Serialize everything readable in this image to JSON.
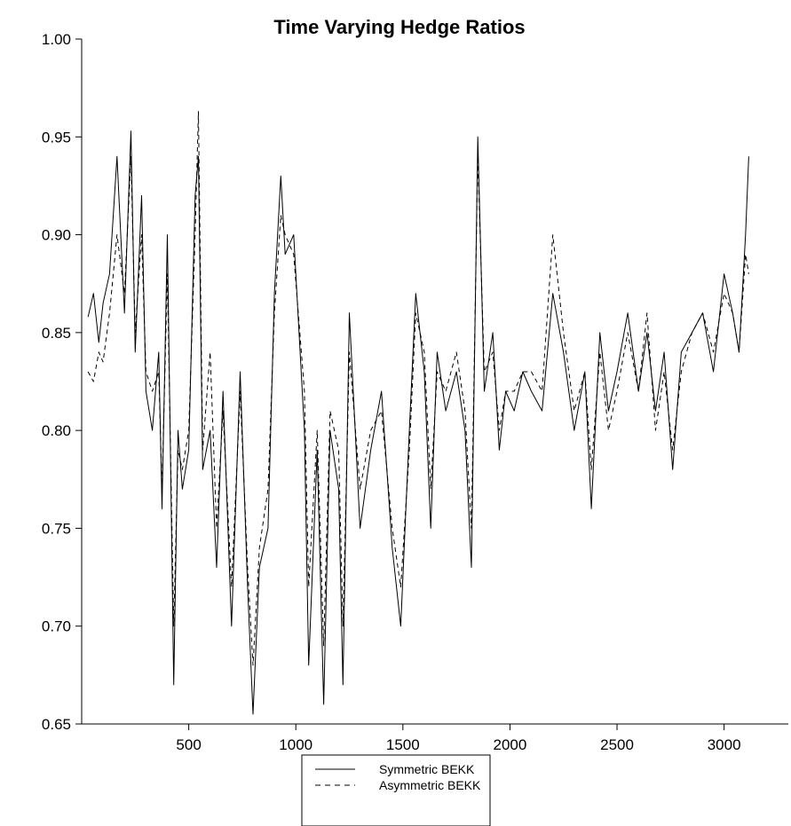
{
  "chart_data": {
    "type": "line",
    "title": "Time Varying Hedge Ratios",
    "xlabel": "",
    "ylabel": "",
    "xlim": [
      0,
      3300
    ],
    "ylim": [
      0.65,
      1.0
    ],
    "xticks": [
      500,
      1000,
      1500,
      2000,
      2500,
      3000
    ],
    "yticks": [
      "0.65",
      "0.70",
      "0.75",
      "0.80",
      "0.85",
      "0.90",
      "0.95",
      "1.00"
    ],
    "grid": false,
    "legend_position": "bottom-center",
    "series": [
      {
        "name": "Symmetric BEKK",
        "line_style": "solid",
        "x": [
          30,
          55,
          80,
          100,
          130,
          165,
          200,
          230,
          250,
          280,
          300,
          330,
          360,
          375,
          400,
          430,
          450,
          470,
          500,
          530,
          545,
          565,
          600,
          630,
          660,
          700,
          740,
          775,
          800,
          830,
          870,
          900,
          930,
          950,
          990,
          1040,
          1060,
          1100,
          1130,
          1160,
          1200,
          1220,
          1250,
          1300,
          1350,
          1400,
          1450,
          1490,
          1530,
          1560,
          1600,
          1630,
          1660,
          1700,
          1750,
          1790,
          1820,
          1850,
          1880,
          1920,
          1950,
          1980,
          2020,
          2060,
          2100,
          2150,
          2200,
          2250,
          2300,
          2350,
          2380,
          2420,
          2460,
          2500,
          2550,
          2600,
          2640,
          2680,
          2720,
          2760,
          2800,
          2850,
          2900,
          2950,
          3000,
          3040,
          3070,
          3100,
          3115
        ],
        "values": [
          0.858,
          0.87,
          0.845,
          0.865,
          0.88,
          0.94,
          0.86,
          0.953,
          0.84,
          0.92,
          0.82,
          0.8,
          0.84,
          0.76,
          0.9,
          0.67,
          0.8,
          0.77,
          0.79,
          0.92,
          0.94,
          0.78,
          0.8,
          0.73,
          0.82,
          0.7,
          0.83,
          0.72,
          0.655,
          0.73,
          0.75,
          0.87,
          0.93,
          0.89,
          0.9,
          0.8,
          0.68,
          0.79,
          0.66,
          0.8,
          0.77,
          0.67,
          0.86,
          0.75,
          0.79,
          0.82,
          0.74,
          0.7,
          0.8,
          0.87,
          0.83,
          0.75,
          0.84,
          0.81,
          0.83,
          0.8,
          0.73,
          0.95,
          0.82,
          0.85,
          0.79,
          0.82,
          0.81,
          0.83,
          0.82,
          0.81,
          0.87,
          0.84,
          0.8,
          0.83,
          0.76,
          0.85,
          0.81,
          0.83,
          0.86,
          0.82,
          0.85,
          0.81,
          0.84,
          0.78,
          0.84,
          0.85,
          0.86,
          0.83,
          0.88,
          0.86,
          0.84,
          0.9,
          0.94
        ]
      },
      {
        "name": "Asymmetric BEKK",
        "line_style": "dashed",
        "x": [
          30,
          55,
          80,
          100,
          130,
          165,
          200,
          230,
          250,
          280,
          300,
          330,
          360,
          375,
          400,
          430,
          450,
          470,
          500,
          530,
          545,
          565,
          600,
          630,
          660,
          700,
          740,
          775,
          800,
          830,
          870,
          900,
          930,
          950,
          990,
          1040,
          1060,
          1100,
          1130,
          1160,
          1200,
          1220,
          1250,
          1300,
          1350,
          1400,
          1450,
          1490,
          1530,
          1560,
          1600,
          1630,
          1660,
          1700,
          1750,
          1790,
          1820,
          1850,
          1880,
          1920,
          1950,
          1980,
          2020,
          2060,
          2100,
          2150,
          2200,
          2250,
          2300,
          2350,
          2380,
          2420,
          2460,
          2500,
          2550,
          2600,
          2640,
          2680,
          2720,
          2760,
          2800,
          2850,
          2900,
          2950,
          3000,
          3040,
          3070,
          3100,
          3115
        ],
        "values": [
          0.83,
          0.825,
          0.84,
          0.835,
          0.86,
          0.9,
          0.87,
          0.94,
          0.85,
          0.9,
          0.83,
          0.82,
          0.83,
          0.77,
          0.88,
          0.7,
          0.79,
          0.78,
          0.8,
          0.9,
          0.963,
          0.79,
          0.84,
          0.75,
          0.81,
          0.72,
          0.82,
          0.73,
          0.68,
          0.74,
          0.77,
          0.86,
          0.91,
          0.9,
          0.89,
          0.82,
          0.72,
          0.8,
          0.69,
          0.81,
          0.79,
          0.7,
          0.84,
          0.77,
          0.8,
          0.81,
          0.75,
          0.72,
          0.79,
          0.86,
          0.84,
          0.77,
          0.83,
          0.82,
          0.84,
          0.81,
          0.75,
          0.94,
          0.83,
          0.84,
          0.8,
          0.82,
          0.82,
          0.83,
          0.83,
          0.82,
          0.9,
          0.85,
          0.81,
          0.83,
          0.78,
          0.84,
          0.8,
          0.82,
          0.85,
          0.82,
          0.86,
          0.8,
          0.83,
          0.79,
          0.83,
          0.85,
          0.86,
          0.84,
          0.87,
          0.86,
          0.84,
          0.89,
          0.88
        ]
      }
    ],
    "colors": {
      "line": "#000000",
      "background": "#ffffff"
    }
  }
}
